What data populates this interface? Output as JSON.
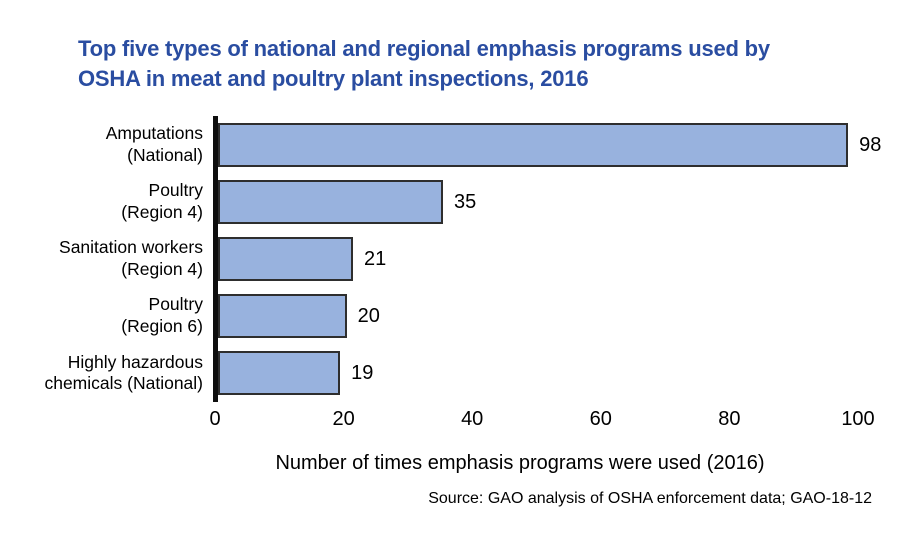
{
  "title": {
    "line1": "Top five types of national and regional emphasis programs used by",
    "line2": "OSHA in meat and poultry plant inspections, 2016"
  },
  "source_note": "Source: GAO analysis of OSHA enforcement data; GAO-18-12",
  "colors": {
    "title_blue": "#2a4da1",
    "bar_fill": "#98b2de",
    "bar_border": "#2e2e2e",
    "axis_line": "#0e0e0e",
    "text": "#000000"
  },
  "chart_data": {
    "type": "bar",
    "orientation": "horizontal",
    "title": "Top five types of national and regional emphasis programs used by OSHA in meat and poultry plant inspections, 2016",
    "xlabel": "Number of times emphasis programs were used (2016)",
    "ylabel": "",
    "xlim": [
      0,
      100
    ],
    "xticks": [
      0,
      20,
      40,
      60,
      80,
      100
    ],
    "grid": false,
    "legend": false,
    "categories": [
      "Amputations (National)",
      "Poultry (Region 4)",
      "Sanitation workers (Region 4)",
      "Poultry (Region 6)",
      "Highly hazardous chemicals (National)"
    ],
    "category_lines": [
      [
        "Amputations",
        "(National)"
      ],
      [
        "Poultry",
        "(Region 4)"
      ],
      [
        "Sanitation workers",
        "(Region 4)"
      ],
      [
        "Poultry",
        "(Region 6)"
      ],
      [
        "Highly hazardous",
        "chemicals (National)"
      ]
    ],
    "values": [
      98,
      35,
      21,
      20,
      19
    ],
    "data_labels": [
      "98",
      "35",
      "21",
      "20",
      "19"
    ]
  }
}
